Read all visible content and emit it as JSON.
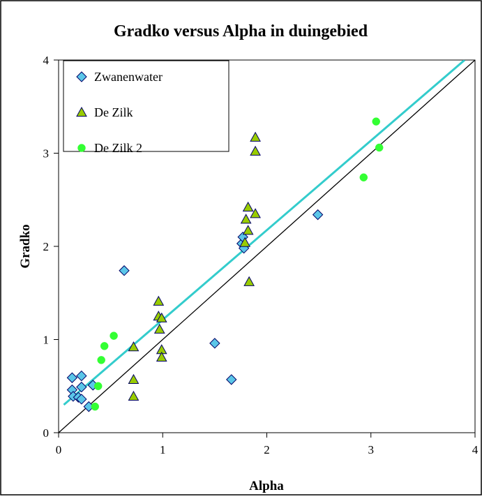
{
  "chart_data": {
    "type": "scatter",
    "title": "Gradko versus Alpha in duingebied",
    "xlabel": "Alpha",
    "ylabel": "Gradko",
    "xlim": [
      0,
      4
    ],
    "ylim": [
      0,
      4
    ],
    "xticks": [
      "0",
      "1",
      "2",
      "3",
      "4"
    ],
    "yticks": [
      "0",
      "1",
      "2",
      "3",
      "4"
    ],
    "grid": false,
    "legend_position": "top-left",
    "series": [
      {
        "name": "Zwanenwater",
        "marker": "diamond",
        "color": "#5bc6e8",
        "points": [
          [
            0.13,
            0.59
          ],
          [
            0.13,
            0.46
          ],
          [
            0.14,
            0.39
          ],
          [
            0.19,
            0.38
          ],
          [
            0.22,
            0.36
          ],
          [
            0.22,
            0.49
          ],
          [
            0.22,
            0.61
          ],
          [
            0.29,
            0.28
          ],
          [
            0.33,
            0.51
          ],
          [
            0.63,
            1.74
          ],
          [
            1.5,
            0.96
          ],
          [
            1.66,
            0.57
          ],
          [
            1.76,
            2.03
          ],
          [
            1.77,
            2.1
          ],
          [
            1.78,
            1.98
          ],
          [
            2.49,
            2.34
          ]
        ]
      },
      {
        "name": "De Zilk",
        "marker": "triangle",
        "color": "#99cc00",
        "points": [
          [
            0.72,
            0.92
          ],
          [
            0.72,
            0.57
          ],
          [
            0.72,
            0.39
          ],
          [
            0.96,
            1.41
          ],
          [
            0.96,
            1.25
          ],
          [
            0.97,
            1.11
          ],
          [
            0.99,
            1.23
          ],
          [
            0.99,
            0.89
          ],
          [
            0.99,
            0.81
          ],
          [
            1.79,
            2.04
          ],
          [
            1.8,
            2.29
          ],
          [
            1.82,
            2.42
          ],
          [
            1.82,
            2.17
          ],
          [
            1.83,
            1.62
          ],
          [
            1.89,
            2.35
          ],
          [
            1.89,
            3.02
          ],
          [
            1.89,
            3.17
          ]
        ]
      },
      {
        "name": "De Zilk 2",
        "marker": "circle",
        "color": "#33ff33",
        "points": [
          [
            0.35,
            0.28
          ],
          [
            0.38,
            0.5
          ],
          [
            0.41,
            0.78
          ],
          [
            0.44,
            0.93
          ],
          [
            0.53,
            1.04
          ],
          [
            2.93,
            2.74
          ],
          [
            3.05,
            3.34
          ],
          [
            3.08,
            3.06
          ]
        ]
      }
    ],
    "lines": [
      {
        "label": "",
        "kind": "trendline",
        "color": "#33cccc",
        "x": [
          0.05,
          3.9
        ],
        "y": [
          0.3,
          4.0
        ]
      },
      {
        "label": "",
        "kind": "1:1",
        "color": "#000000",
        "x": [
          0.0,
          4.0
        ],
        "y": [
          0.0,
          4.0
        ]
      }
    ]
  }
}
